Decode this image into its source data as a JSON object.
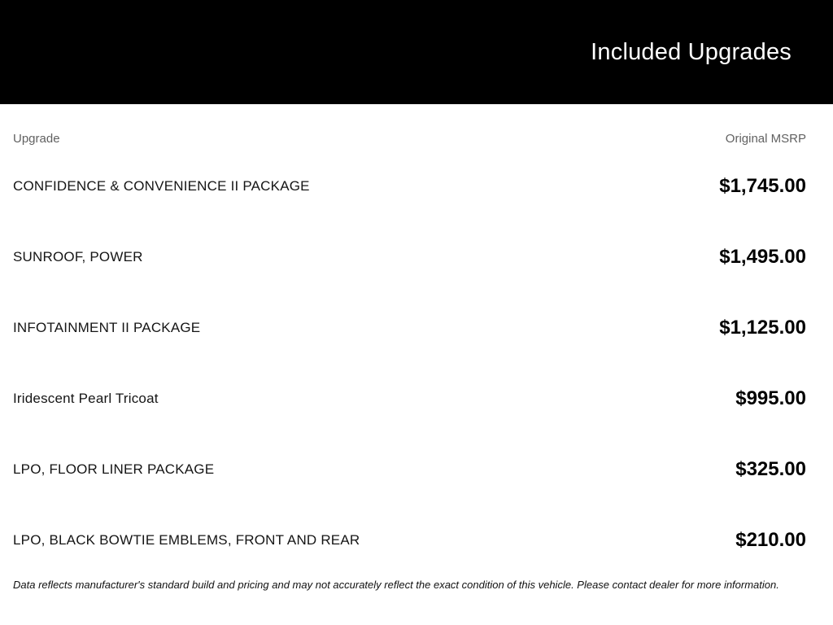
{
  "header": {
    "title": "Included Upgrades"
  },
  "table": {
    "columns": {
      "upgrade": "Upgrade",
      "msrp": "Original MSRP"
    },
    "rows": [
      {
        "name": "CONFIDENCE & CONVENIENCE II PACKAGE",
        "msrp": "$1,745.00"
      },
      {
        "name": "SUNROOF, POWER",
        "msrp": "$1,495.00"
      },
      {
        "name": "INFOTAINMENT II PACKAGE",
        "msrp": "$1,125.00"
      },
      {
        "name": "Iridescent Pearl Tricoat",
        "msrp": "$995.00"
      },
      {
        "name": "LPO, FLOOR LINER PACKAGE",
        "msrp": "$325.00"
      },
      {
        "name": "LPO, BLACK BOWTIE EMBLEMS, FRONT AND REAR",
        "msrp": "$210.00"
      }
    ]
  },
  "disclaimer": "Data reflects manufacturer's standard build and pricing and may not accurately reflect the exact condition of this vehicle. Please contact dealer for more information.",
  "colors": {
    "header_bg": "#000000",
    "header_text": "#ffffff",
    "column_label": "#616161",
    "row_text": "#151515",
    "price_text": "#000000"
  }
}
